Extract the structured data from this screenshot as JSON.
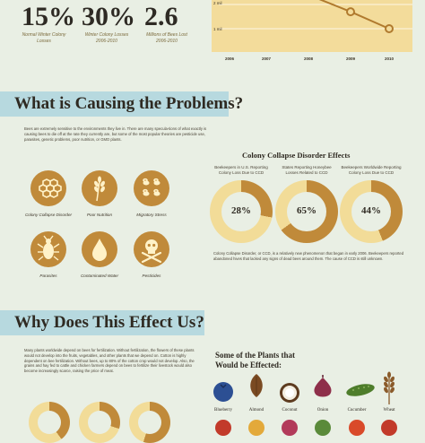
{
  "stats": [
    {
      "value": "15%",
      "label": "Normal Winter Colony Losses"
    },
    {
      "value": "30%",
      "label": "Winter Colony Losses 2006-2010"
    },
    {
      "value": "2.6",
      "label": "Millions of Bees Lost 2006-2010"
    }
  ],
  "chart_data": {
    "type": "line",
    "x": [
      "2006",
      "2007",
      "2008",
      "2009",
      "2010"
    ],
    "ytick_labels": [
      "2 mil",
      "1 mil"
    ],
    "values": [
      null,
      null,
      2.4,
      1.7,
      1.0
    ]
  },
  "section1": {
    "title": "What is Causing the Problems?",
    "paragraph": "Bees are extremely sensitive to the environments they live in. There are many specula-tions of what exactly is causing bees to die off at the rate they currently are, but some of the most popular theories are pesticide use, parasites, genetic problems, poor nutrition, or GMO plants.",
    "causes": [
      {
        "label": "Colony Collapse Disorder",
        "icon": "honeycomb-icon"
      },
      {
        "label": "Poor Nutrition",
        "icon": "wheat-icon"
      },
      {
        "label": "Migratory Stress",
        "icon": "bees-icon"
      },
      {
        "label": "Parasites",
        "icon": "bug-icon"
      },
      {
        "label": "Contaminated Water",
        "icon": "water-drop-icon"
      },
      {
        "label": "Pesticides",
        "icon": "skull-crossbones-icon"
      }
    ],
    "ccd_title": "Colony Collapse Disorder Effects",
    "effects": [
      {
        "label": "Beekeepers in U.S. Reporting Colony Loss Due to CCD",
        "value": "28%",
        "fraction": 0.28
      },
      {
        "label": "States Reporting Honeybee Losses Related to CCD",
        "value": "65%",
        "fraction": 0.65
      },
      {
        "label": "Beekeepers Worldwide Reporting Colony Loss Due to CCD",
        "value": "44%",
        "fraction": 0.44
      }
    ],
    "ccd_note": "Colony Collapse Disorder, or CCD, is a relatively new phenomenon that began in early 2006. Beekeepers reported abandoned hives that lacked any signs of dead bees around them. The cause of CCD is still unknown."
  },
  "section2": {
    "title": "Why Does This Effect Us?",
    "paragraph": "Many plants worldwide depend on bees for fertilization. Without fertilization, the flowers of these plants would not develop into the fruits, vegetables, and other plants that we depend on. Cotton is highly dependent on bee fertilization. Without bees, up to 80% of the cotton crop would not develop. Also, the grains and hay fed to cattle and chicken farmers depend on bees to fertilize their livestock would also become increasingly scarce, raising the price of meat.",
    "plants_title": "Some of the Plants that Would be Effected:",
    "plants": [
      {
        "name": "Blueberry",
        "icon": "blueberry-icon"
      },
      {
        "name": "Almond",
        "icon": "almond-icon"
      },
      {
        "name": "Coconut",
        "icon": "coconut-icon"
      },
      {
        "name": "Onion",
        "icon": "onion-icon"
      },
      {
        "name": "Cucumber",
        "icon": "cucumber-icon"
      },
      {
        "name": "Wheat",
        "icon": "wheat-icon"
      }
    ]
  },
  "colors": {
    "gold": "#c08a3a",
    "ring_bg": "#f2dc98",
    "banner": "#b7d9df",
    "background": "#e9efe4"
  }
}
